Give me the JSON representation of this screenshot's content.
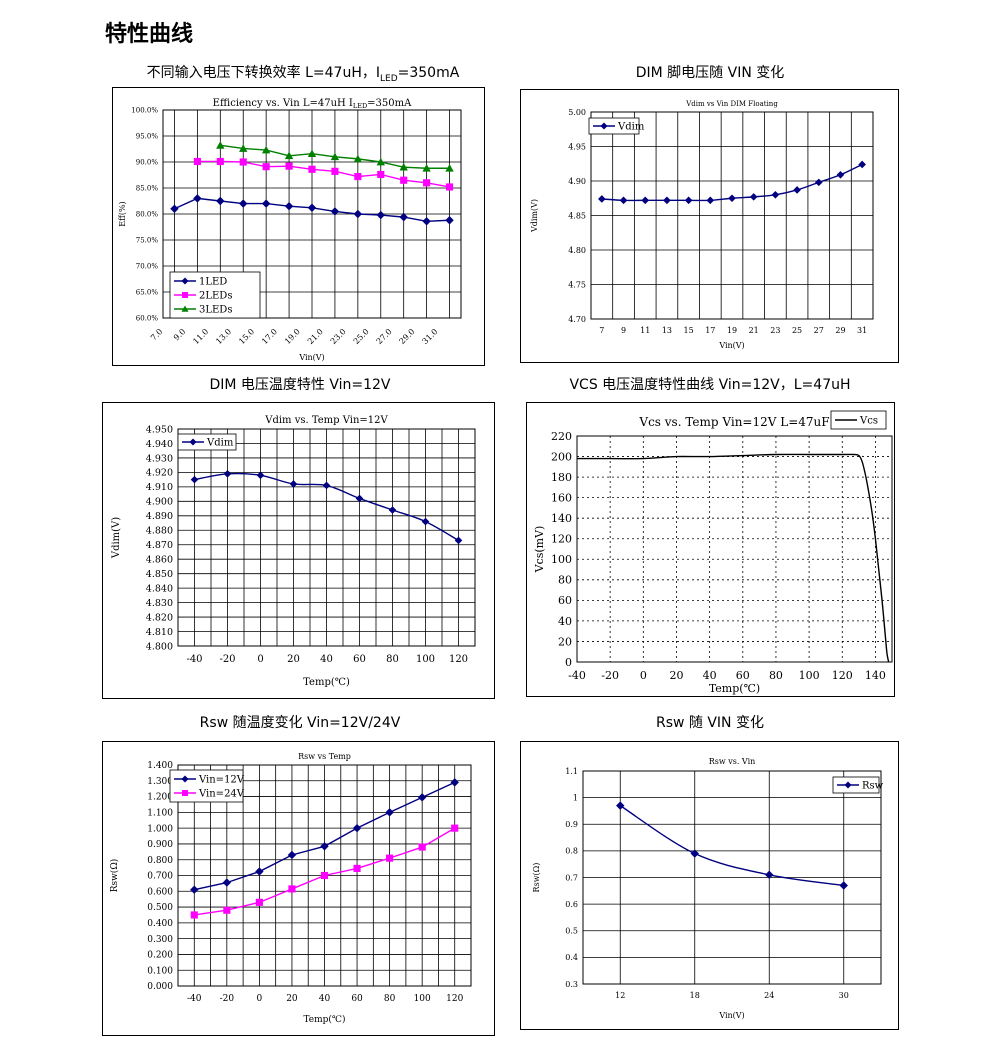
{
  "page": {
    "title": "特性曲线"
  },
  "captions": {
    "c1_main": "不同输入电压下转换效率 L=47uH，I",
    "c1_sub": "LED",
    "c1_tail": "=350mA",
    "c2": "DIM 脚电压随 VIN 变化",
    "c3": "DIM  电压温度特性 Vin=12V",
    "c4": "VCS 电压温度特性曲线 Vin=12V，L=47uH",
    "c5": "Rsw 随温度变化 Vin=12V/24V",
    "c6": "Rsw 随 VIN 变化"
  },
  "chart_data": [
    {
      "id": "eff",
      "type": "line",
      "title_main": "Efficiency vs.  Vin L=47uH I",
      "title_sub": "LED",
      "title_tail": "=350mA",
      "xlabel": "Vin(V)",
      "ylabel": "Eff(%)",
      "ylim": [
        60,
        100
      ],
      "yticks": [
        60,
        65,
        70,
        75,
        80,
        85,
        90,
        95,
        100
      ],
      "ytick_labels": [
        "60.0%",
        "65.0%",
        "70.0%",
        "75.0%",
        "80.0%",
        "85.0%",
        "90.0%",
        "95.0%",
        "100.0%"
      ],
      "xlim": [
        7,
        33
      ],
      "xticks": [
        7,
        9,
        11,
        13,
        15,
        17,
        19,
        21,
        23,
        25,
        27,
        29,
        31
      ],
      "xtick_labels": [
        "7.0",
        "9.0",
        "11.0",
        "13.0",
        "15.0",
        "17.0",
        "19.0",
        "21.0",
        "23.0",
        "25.0",
        "27.0",
        "29.0",
        "31.0"
      ],
      "grid": true,
      "legend_position": "bottom-left",
      "series": [
        {
          "name": "1LED",
          "color": "#000080",
          "marker": "diamond",
          "x": [
            8,
            10,
            12,
            14,
            16,
            18,
            20,
            22,
            24,
            26,
            28,
            30,
            32
          ],
          "y": [
            81.0,
            83.0,
            82.5,
            82.0,
            82.0,
            81.5,
            81.2,
            80.5,
            80.0,
            79.8,
            79.4,
            78.6,
            78.8
          ]
        },
        {
          "name": "2LEDs",
          "color": "#ff00ff",
          "marker": "square",
          "x": [
            10,
            12,
            14,
            16,
            18,
            20,
            22,
            24,
            26,
            28,
            30,
            32
          ],
          "y": [
            90.1,
            90.1,
            90.0,
            89.1,
            89.2,
            88.6,
            88.2,
            87.2,
            87.6,
            86.5,
            86.0,
            85.2
          ]
        },
        {
          "name": "3LEDs",
          "color": "#008000",
          "marker": "triangle",
          "x": [
            12,
            14,
            16,
            18,
            20,
            22,
            24,
            26,
            28,
            30,
            32
          ],
          "y": [
            93.2,
            92.6,
            92.3,
            91.2,
            91.6,
            91.0,
            90.6,
            90.0,
            89.0,
            88.8,
            88.8
          ]
        }
      ]
    },
    {
      "id": "vdim_vin",
      "type": "line",
      "title": "Vdim vs Vin DIM Floating",
      "xlabel": "Vin(V)",
      "ylabel": "Vdim(V)",
      "ylim": [
        4.7,
        5.0
      ],
      "yticks": [
        4.7,
        4.75,
        4.8,
        4.85,
        4.9,
        4.95,
        5.0
      ],
      "ytick_labels": [
        "4.70",
        "4.75",
        "4.80",
        "4.85",
        "4.90",
        "4.95",
        "5.00"
      ],
      "xlim": [
        6,
        32
      ],
      "xticks": [
        7,
        9,
        11,
        13,
        15,
        17,
        19,
        21,
        23,
        25,
        27,
        29,
        31
      ],
      "xtick_labels": [
        "7",
        "9",
        "11",
        "13",
        "15",
        "17",
        "19",
        "21",
        "23",
        "25",
        "27",
        "29",
        "31"
      ],
      "grid": true,
      "legend_position": "top-left",
      "series": [
        {
          "name": "Vdim",
          "color": "#000080",
          "marker": "diamond",
          "x": [
            7,
            9,
            11,
            13,
            15,
            17,
            19,
            21,
            23,
            25,
            27,
            29,
            31
          ],
          "y": [
            4.874,
            4.872,
            4.872,
            4.872,
            4.872,
            4.872,
            4.875,
            4.877,
            4.88,
            4.887,
            4.898,
            4.909,
            4.924
          ]
        }
      ]
    },
    {
      "id": "vdim_temp",
      "type": "line",
      "title": "Vdim vs.  Temp Vin=12V",
      "xlabel": "Temp(℃)",
      "ylabel": "Vdim(V)",
      "ylim": [
        4.8,
        4.95
      ],
      "yticks": [
        4.8,
        4.81,
        4.82,
        4.83,
        4.84,
        4.85,
        4.86,
        4.87,
        4.88,
        4.89,
        4.9,
        4.91,
        4.92,
        4.93,
        4.94,
        4.95
      ],
      "ytick_labels": [
        "4.800",
        "4.810",
        "4.820",
        "4.830",
        "4.840",
        "4.850",
        "4.860",
        "4.870",
        "4.880",
        "4.890",
        "4.900",
        "4.910",
        "4.920",
        "4.930",
        "4.940",
        "4.950"
      ],
      "xlim": [
        -50,
        130
      ],
      "xticks": [
        -40,
        -20,
        0,
        20,
        40,
        60,
        80,
        100,
        120
      ],
      "xtick_labels": [
        "-40",
        "-20",
        "0",
        "20",
        "40",
        "60",
        "80",
        "100",
        "120"
      ],
      "grid": true,
      "legend_position": "top-left",
      "series": [
        {
          "name": "Vdim",
          "color": "#000080",
          "marker": "diamond",
          "x": [
            -40,
            -20,
            0,
            20,
            40,
            60,
            80,
            100,
            120
          ],
          "y": [
            4.915,
            4.919,
            4.918,
            4.912,
            4.911,
            4.902,
            4.894,
            4.886,
            4.873
          ]
        }
      ]
    },
    {
      "id": "vcs_temp",
      "type": "line",
      "title": "Vcs vs. Temp Vin=12V L=47uF",
      "xlabel": "Temp(℃)",
      "ylabel": "Vcs(mV)",
      "ylim": [
        0,
        220
      ],
      "yticks": [
        0,
        20,
        40,
        60,
        80,
        100,
        120,
        140,
        160,
        180,
        200,
        220
      ],
      "ytick_labels": [
        "0",
        "20",
        "40",
        "60",
        "80",
        "100",
        "120",
        "140",
        "160",
        "180",
        "200",
        "220"
      ],
      "xlim": [
        -40,
        150
      ],
      "xticks": [
        -40,
        -20,
        0,
        20,
        40,
        60,
        80,
        100,
        120,
        140
      ],
      "xtick_labels": [
        "-40",
        "-20",
        "0",
        "20",
        "40",
        "60",
        "80",
        "100",
        "120",
        "140"
      ],
      "grid": "dotted",
      "legend_position": "top-right",
      "series": [
        {
          "name": "Vcs",
          "color": "#000000",
          "marker": "none",
          "x": [
            -40,
            -20,
            0,
            10,
            20,
            40,
            60,
            80,
            100,
            120,
            127,
            130,
            132,
            134,
            136,
            138,
            140,
            142,
            144,
            146,
            147,
            148
          ],
          "y": [
            198,
            198,
            198,
            199,
            200,
            200,
            201,
            202,
            202,
            202,
            202,
            201,
            195,
            182,
            165,
            145,
            120,
            90,
            60,
            25,
            8,
            0
          ]
        }
      ]
    },
    {
      "id": "rsw_temp",
      "type": "line",
      "title": "Rsw vs Temp",
      "xlabel": "Temp(℃)",
      "ylabel": "Rsw(Ω)",
      "ylim": [
        0,
        1.4
      ],
      "yticks": [
        0,
        0.1,
        0.2,
        0.3,
        0.4,
        0.5,
        0.6,
        0.7,
        0.8,
        0.9,
        1.0,
        1.1,
        1.2,
        1.3,
        1.4
      ],
      "ytick_labels": [
        "0.000",
        "0.100",
        "0.200",
        "0.300",
        "0.400",
        "0.500",
        "0.600",
        "0.700",
        "0.800",
        "0.900",
        "1.000",
        "1.100",
        "1.200",
        "1.300",
        "1.400"
      ],
      "xlim": [
        -50,
        130
      ],
      "xticks": [
        -40,
        -20,
        0,
        20,
        40,
        60,
        80,
        100,
        120
      ],
      "xtick_labels": [
        "-40",
        "-20",
        "0",
        "20",
        "40",
        "60",
        "80",
        "100",
        "120"
      ],
      "grid": true,
      "legend_position": "top-left",
      "series": [
        {
          "name": "Vin=12V",
          "color": "#000080",
          "marker": "diamond",
          "x": [
            -40,
            -20,
            0,
            20,
            40,
            60,
            80,
            100,
            120
          ],
          "y": [
            0.61,
            0.655,
            0.725,
            0.83,
            0.885,
            1.0,
            1.1,
            1.195,
            1.29
          ]
        },
        {
          "name": "Vin=24V",
          "color": "#ff00ff",
          "marker": "square",
          "x": [
            -40,
            -20,
            0,
            20,
            40,
            60,
            80,
            100,
            120
          ],
          "y": [
            0.45,
            0.48,
            0.53,
            0.615,
            0.7,
            0.745,
            0.81,
            0.88,
            1.0
          ]
        }
      ]
    },
    {
      "id": "rsw_vin",
      "type": "line",
      "title": "Rsw vs. Vin",
      "xlabel": "Vin(V)",
      "ylabel": "Rsw(Ω)",
      "ylim": [
        0.3,
        1.1
      ],
      "yticks": [
        0.3,
        0.4,
        0.5,
        0.6,
        0.7,
        0.8,
        0.9,
        1.0,
        1.1
      ],
      "ytick_labels": [
        "0.3",
        "0.4",
        "0.5",
        "0.6",
        "0.7",
        "0.8",
        "0.9",
        "1",
        "1.1"
      ],
      "xlim": [
        9,
        33
      ],
      "xticks": [
        12,
        18,
        24,
        30
      ],
      "xtick_labels": [
        "12",
        "18",
        "24",
        "30"
      ],
      "grid": true,
      "legend_position": "top-right",
      "series": [
        {
          "name": "Rsw",
          "color": "#000080",
          "marker": "diamond",
          "x": [
            12,
            18,
            24,
            30
          ],
          "y": [
            0.97,
            0.79,
            0.71,
            0.67
          ]
        }
      ]
    }
  ]
}
